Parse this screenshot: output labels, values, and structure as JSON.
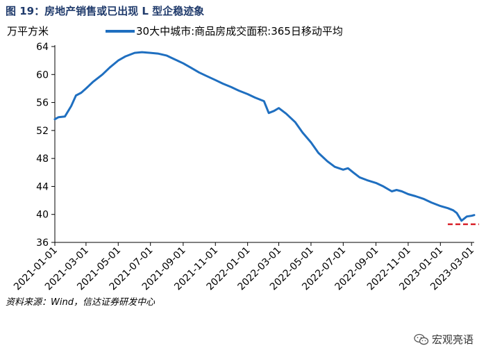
{
  "title": "图 19：房地产销售或已出现 L 型企稳迹象",
  "unit_label": "万平方米",
  "source": "资料来源：Wind，信达证券研发中心",
  "watermark": {
    "icon": "wechat-icon",
    "text": "宏观亮语"
  },
  "colors": {
    "series": "#1f6fc0",
    "reference": "#d9222a",
    "title": "#1f3a6b"
  },
  "chart_data": {
    "type": "line",
    "ylim": [
      36,
      64
    ],
    "yticks": [
      36,
      40,
      44,
      48,
      52,
      56,
      60,
      64
    ],
    "xlim": [
      "2021-01-01",
      "2023-03-06"
    ],
    "xticks": [
      "2021-01-01",
      "2021-03-01",
      "2021-05-01",
      "2021-07-01",
      "2021-09-01",
      "2021-11-01",
      "2022-01-01",
      "2022-03-01",
      "2022-05-01",
      "2022-07-01",
      "2022-09-01",
      "2022-11-01",
      "2023-01-01",
      "2023-03-01"
    ],
    "legend": "top",
    "grid": false,
    "series": [
      {
        "name": "30大中城市:商品房成交面积:365日移动平均",
        "x": [
          "2021-01-01",
          "2021-01-08",
          "2021-01-20",
          "2021-02-01",
          "2021-02-10",
          "2021-02-20",
          "2021-03-01",
          "2021-03-15",
          "2021-04-01",
          "2021-04-15",
          "2021-05-01",
          "2021-05-15",
          "2021-06-01",
          "2021-06-15",
          "2021-07-01",
          "2021-07-15",
          "2021-08-01",
          "2021-08-15",
          "2021-09-01",
          "2021-09-15",
          "2021-10-01",
          "2021-10-15",
          "2021-11-01",
          "2021-11-15",
          "2021-12-01",
          "2021-12-15",
          "2022-01-01",
          "2022-01-15",
          "2022-02-01",
          "2022-02-10",
          "2022-02-20",
          "2022-03-01",
          "2022-03-15",
          "2022-04-01",
          "2022-04-15",
          "2022-05-01",
          "2022-05-15",
          "2022-06-01",
          "2022-06-15",
          "2022-07-01",
          "2022-07-10",
          "2022-07-20",
          "2022-08-01",
          "2022-08-15",
          "2022-09-01",
          "2022-09-15",
          "2022-10-01",
          "2022-10-10",
          "2022-10-20",
          "2022-11-01",
          "2022-11-15",
          "2022-12-01",
          "2022-12-15",
          "2023-01-01",
          "2023-01-15",
          "2023-01-25",
          "2023-02-01",
          "2023-02-10",
          "2023-02-20",
          "2023-03-01",
          "2023-03-06"
        ],
        "values": [
          53.6,
          53.9,
          54.0,
          55.5,
          57.0,
          57.4,
          58.0,
          59.0,
          60.0,
          61.0,
          62.0,
          62.6,
          63.1,
          63.2,
          63.1,
          63.0,
          62.7,
          62.2,
          61.6,
          61.0,
          60.3,
          59.8,
          59.2,
          58.7,
          58.2,
          57.7,
          57.2,
          56.7,
          56.2,
          54.5,
          54.8,
          55.2,
          54.4,
          53.2,
          51.7,
          50.3,
          48.8,
          47.6,
          46.8,
          46.4,
          46.6,
          46.0,
          45.3,
          44.9,
          44.5,
          44.0,
          43.3,
          43.5,
          43.3,
          42.9,
          42.6,
          42.2,
          41.7,
          41.2,
          40.9,
          40.6,
          40.2,
          39.1,
          39.7,
          39.8,
          39.9
        ]
      }
    ],
    "reference_line": {
      "y": 38.6,
      "x_start": "2023-01-15",
      "x_end": "2023-03-15",
      "style": "dashed"
    }
  }
}
